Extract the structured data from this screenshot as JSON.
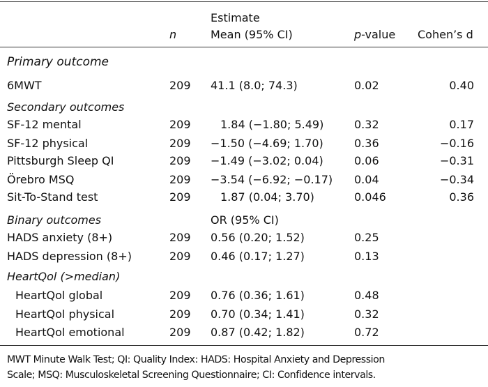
{
  "header": {
    "n": "n",
    "estimate_line1": "Estimate",
    "estimate_line2": "Mean (95% CI)",
    "p_italic": "p",
    "p_rest": "-value",
    "cohens_d": "Cohen’s d"
  },
  "sections": {
    "primary": "Primary outcome",
    "secondary": "Secondary outcomes",
    "binary": "Binary outcomes",
    "binary_estimate_header": "OR (95% CI)",
    "heartqol": "HeartQol (>median)"
  },
  "rows": [
    {
      "label": "6MWT",
      "n": "209",
      "estimate": "41.1 (8.0; 74.3)",
      "p": "0.02",
      "d": "0.40"
    },
    {
      "label": "SF-12 mental",
      "n": "209",
      "estimate": "1.84 (−1.80; 5.49)",
      "p": "0.32",
      "d": "0.17"
    },
    {
      "label": "SF-12 physical",
      "n": "209",
      "estimate": "−1.50 (−4.69; 1.70)",
      "p": "0.36",
      "d": "−0.16"
    },
    {
      "label": "Pittsburgh Sleep QI",
      "n": "209",
      "estimate": "−1.49 (−3.02; 0.04)",
      "p": "0.06",
      "d": "−0.31"
    },
    {
      "label": "Örebro MSQ",
      "n": "209",
      "estimate": "−3.54 (−6.92; −0.17)",
      "p": "0.04",
      "d": "−0.34"
    },
    {
      "label": "Sit-To-Stand test",
      "n": "209",
      "estimate": "1.87 (0.04; 3.70)",
      "p": "0.046",
      "d": "0.36"
    },
    {
      "label": "HADS anxiety (8+)",
      "n": "209",
      "estimate": "0.56 (0.20; 1.52)",
      "p": "0.25",
      "d": ""
    },
    {
      "label": "HADS depression (8+)",
      "n": "209",
      "estimate": "0.46 (0.17; 1.27)",
      "p": "0.13",
      "d": ""
    },
    {
      "label": "HeartQol global",
      "n": "209",
      "estimate": "0.76 (0.36; 1.61)",
      "p": "0.48",
      "d": ""
    },
    {
      "label": "HeartQol physical",
      "n": "209",
      "estimate": "0.70 (0.34; 1.41)",
      "p": "0.32",
      "d": ""
    },
    {
      "label": "HeartQol emotional",
      "n": "209",
      "estimate": "0.87 (0.42; 1.82)",
      "p": "0.72",
      "d": ""
    }
  ],
  "footer": {
    "line1": "MWT Minute Walk Test; QI: Quality Index: HADS: Hospital Anxiety and Depression",
    "line2": "Scale; MSQ: Musculoskeletal Screening Questionnaire; CI: Confidence intervals."
  }
}
